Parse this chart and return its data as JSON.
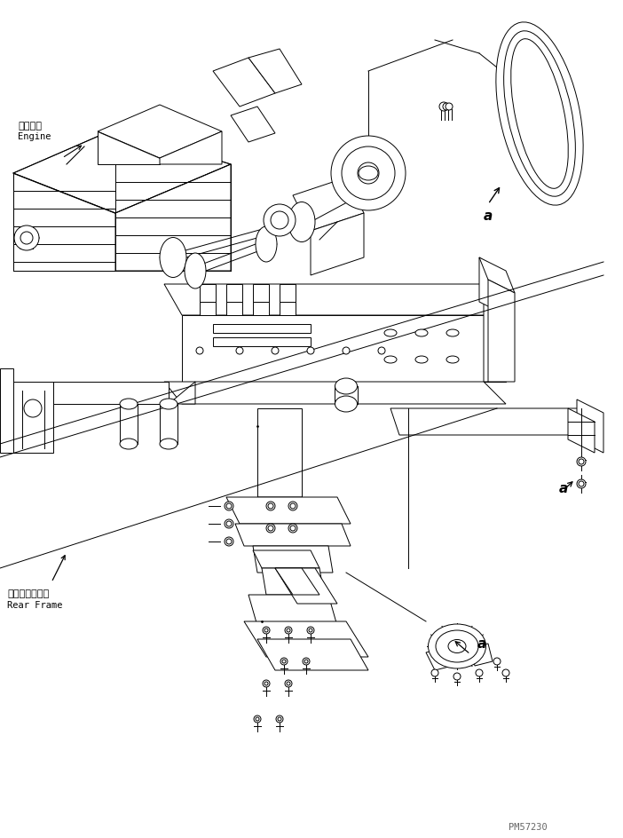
{
  "bg_color": "#ffffff",
  "lc": "#000000",
  "fig_width": 7.02,
  "fig_height": 9.44,
  "dpi": 100,
  "label_engine_jp": "エンジン",
  "label_engine_en": "Engine",
  "label_rear_frame_jp": "リヤーフレーム",
  "label_rear_frame_en": "Rear Frame",
  "label_a": "a",
  "watermark": "PM57230",
  "lw": 0.7
}
